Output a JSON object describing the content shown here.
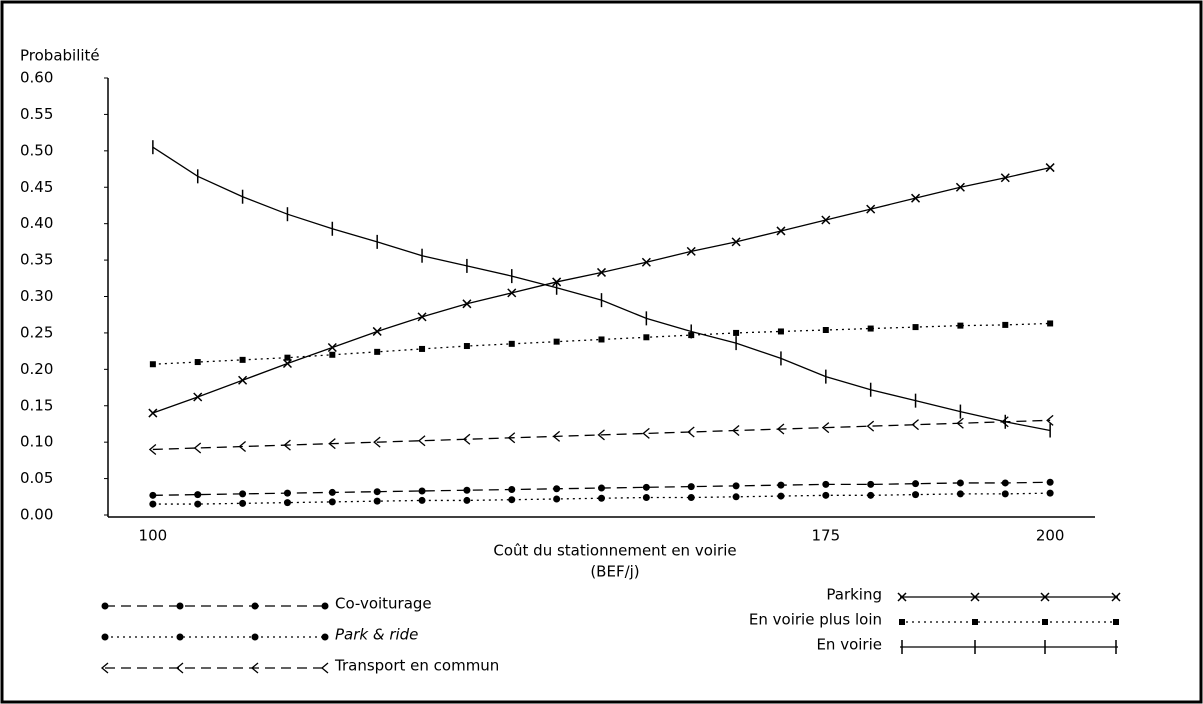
{
  "chart_data": {
    "type": "line",
    "ylabel": "Probabilité",
    "xlabel": [
      "Coût du stationnement en voirie",
      "(BEF/j)"
    ],
    "x": [
      100,
      105,
      110,
      115,
      120,
      125,
      130,
      135,
      140,
      145,
      150,
      155,
      160,
      165,
      170,
      175,
      180,
      185,
      190,
      195,
      200
    ],
    "xlim": [
      95,
      205
    ],
    "xticks": [
      100,
      175,
      200
    ],
    "ylim": [
      0,
      0.6
    ],
    "yticks": [
      {
        "value": 0,
        "label": "0.00"
      },
      0.05,
      {
        "value": 0.1,
        "label": "0.10"
      },
      0.15,
      {
        "value": 0.2,
        "label": "0.20"
      },
      0.25,
      {
        "value": 0.3,
        "label": "0.30"
      },
      0.35,
      {
        "value": 0.4,
        "label": "0.40"
      },
      0.45,
      {
        "value": 0.5,
        "label": "0.50"
      },
      0.55,
      {
        "value": 0.6,
        "label": "0.60"
      }
    ],
    "color": "#000000",
    "series": [
      {
        "name": "Co-voiturage",
        "marker": "circle",
        "line_style": "dashed",
        "legend": "left",
        "values": [
          0.027,
          0.028,
          0.029,
          0.03,
          0.031,
          0.032,
          0.033,
          0.034,
          0.035,
          0.036,
          0.037,
          0.038,
          0.039,
          0.04,
          0.041,
          0.042,
          0.042,
          0.043,
          0.044,
          0.044,
          0.045
        ]
      },
      {
        "name": "Park & ride",
        "marker": "circle",
        "line_style": "dotted",
        "italic": true,
        "legend": "left",
        "values": [
          0.015,
          0.015,
          0.016,
          0.017,
          0.018,
          0.019,
          0.02,
          0.02,
          0.021,
          0.022,
          0.023,
          0.024,
          0.024,
          0.025,
          0.026,
          0.027,
          0.027,
          0.028,
          0.029,
          0.029,
          0.03
        ]
      },
      {
        "name": "Transport en commun",
        "marker": "chevron",
        "line_style": "dashed",
        "legend": "left",
        "values": [
          0.09,
          0.092,
          0.094,
          0.096,
          0.098,
          0.1,
          0.102,
          0.104,
          0.106,
          0.108,
          0.11,
          0.112,
          0.114,
          0.116,
          0.118,
          0.12,
          0.122,
          0.124,
          0.126,
          0.128,
          0.13
        ]
      },
      {
        "name": "Parking",
        "marker": "cross",
        "line_style": "solid",
        "legend": "right",
        "values": [
          0.14,
          0.162,
          0.185,
          0.208,
          0.23,
          0.252,
          0.272,
          0.29,
          0.305,
          0.32,
          0.333,
          0.347,
          0.362,
          0.375,
          0.39,
          0.405,
          0.42,
          0.435,
          0.45,
          0.463,
          0.477
        ]
      },
      {
        "name": "En voirie plus loin",
        "marker": "square",
        "line_style": "dotted",
        "legend": "right",
        "values": [
          0.207,
          0.21,
          0.213,
          0.216,
          0.22,
          0.224,
          0.228,
          0.232,
          0.235,
          0.238,
          0.241,
          0.244,
          0.247,
          0.25,
          0.252,
          0.254,
          0.256,
          0.258,
          0.26,
          0.261,
          0.263
        ]
      },
      {
        "name": "En voirie",
        "marker": "vtick",
        "line_style": "solid",
        "legend": "right",
        "values": [
          0.505,
          0.465,
          0.437,
          0.413,
          0.393,
          0.375,
          0.356,
          0.342,
          0.328,
          0.312,
          0.295,
          0.27,
          0.252,
          0.236,
          0.215,
          0.19,
          0.172,
          0.157,
          0.142,
          0.128,
          0.116
        ]
      }
    ]
  }
}
